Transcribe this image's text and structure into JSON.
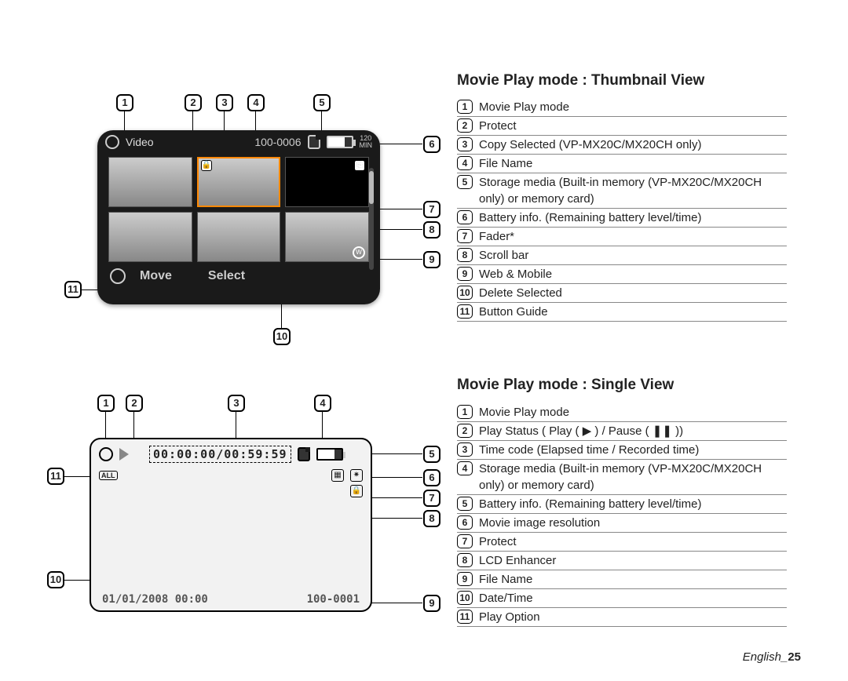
{
  "section1": {
    "title": "Movie Play mode : Thumbnail View",
    "lcd": {
      "mode_label": "Video",
      "file_name": "100-0006",
      "battery_mins": "120",
      "battery_mins_unit": "MIN",
      "footer_move": "Move",
      "footer_select": "Select"
    },
    "callouts": [
      "1",
      "2",
      "3",
      "4",
      "5",
      "6",
      "7",
      "8",
      "9",
      "10",
      "11"
    ],
    "legend": [
      {
        "n": "1",
        "t": "Movie Play mode"
      },
      {
        "n": "2",
        "t": "Protect"
      },
      {
        "n": "3",
        "t": "Copy Selected (VP-MX20C/MX20CH only)"
      },
      {
        "n": "4",
        "t": "File Name"
      },
      {
        "n": "5",
        "t": "Storage media (Built-in memory (VP-MX20C/MX20CH only) or memory card)"
      },
      {
        "n": "6",
        "t": "Battery info. (Remaining battery level/time)"
      },
      {
        "n": "7",
        "t": "Fader*"
      },
      {
        "n": "8",
        "t": "Scroll bar"
      },
      {
        "n": "9",
        "t": "Web & Mobile"
      },
      {
        "n": "10",
        "t": "Delete Selected"
      },
      {
        "n": "11",
        "t": "Button Guide"
      }
    ]
  },
  "section2": {
    "title": "Movie Play mode : Single View",
    "lcd": {
      "timecode": "00:00:00/00:59:59",
      "datetime": "01/01/2008  00:00",
      "file_name": "100-0001",
      "all": "ALL"
    },
    "callouts": [
      "1",
      "2",
      "3",
      "4",
      "5",
      "6",
      "7",
      "8",
      "9",
      "10",
      "11"
    ],
    "legend": [
      {
        "n": "1",
        "t": "Movie Play mode"
      },
      {
        "n": "2",
        "t": "Play Status ( Play ( ▶ ) / Pause ( ❚❚ ))"
      },
      {
        "n": "3",
        "t": "Time code (Elapsed time / Recorded time)"
      },
      {
        "n": "4",
        "t": "Storage media (Built-in memory (VP-MX20C/MX20CH only) or memory card)"
      },
      {
        "n": "5",
        "t": "Battery info. (Remaining battery level/time)"
      },
      {
        "n": "6",
        "t": "Movie image resolution"
      },
      {
        "n": "7",
        "t": "Protect"
      },
      {
        "n": "8",
        "t": "LCD Enhancer"
      },
      {
        "n": "9",
        "t": "File Name"
      },
      {
        "n": "10",
        "t": "Date/Time"
      },
      {
        "n": "11",
        "t": "Play Option"
      }
    ]
  },
  "footer": {
    "lang": "English",
    "page": "25"
  }
}
